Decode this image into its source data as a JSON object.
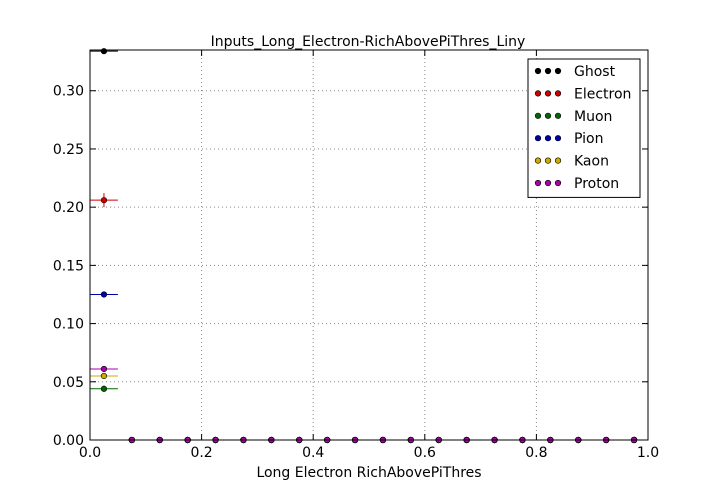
{
  "chart_data": {
    "type": "scatter",
    "title": "Inputs_Long_Electron-RichAbovePiThres_Liny",
    "xlabel": "Long Electron RichAbovePiThres",
    "ylabel": "",
    "xlim": [
      0.0,
      1.0
    ],
    "ylim": [
      0.0,
      0.335
    ],
    "xticks": [
      0.0,
      0.2,
      0.4,
      0.6,
      0.8,
      1.0
    ],
    "xtick_labels": [
      "0.0",
      "0.2",
      "0.4",
      "0.6",
      "0.8",
      "1.0"
    ],
    "yticks": [
      0.0,
      0.05,
      0.1,
      0.15,
      0.2,
      0.25,
      0.3
    ],
    "ytick_labels": [
      "0.00",
      "0.05",
      "0.10",
      "0.15",
      "0.20",
      "0.25",
      "0.30"
    ],
    "grid": true,
    "legend_position": "top-right",
    "x_bin_halfwidth": 0.025,
    "x": [
      0.025,
      0.075,
      0.125,
      0.175,
      0.225,
      0.275,
      0.325,
      0.375,
      0.425,
      0.475,
      0.525,
      0.575,
      0.625,
      0.675,
      0.725,
      0.775,
      0.825,
      0.875,
      0.925,
      0.975
    ],
    "series": [
      {
        "name": "Ghost",
        "color": "#000000",
        "values": [
          0.334,
          0,
          0,
          0,
          0,
          0,
          0,
          0,
          0,
          0,
          0,
          0,
          0,
          0,
          0,
          0,
          0,
          0,
          0,
          0
        ],
        "yerr": [
          0.002,
          0,
          0,
          0,
          0,
          0,
          0,
          0,
          0,
          0,
          0,
          0,
          0,
          0,
          0,
          0,
          0,
          0,
          0,
          0
        ]
      },
      {
        "name": "Electron",
        "color": "#cc0000",
        "values": [
          0.206,
          0,
          0,
          0,
          0,
          0,
          0,
          0,
          0,
          0,
          0,
          0,
          0,
          0,
          0,
          0,
          0,
          0,
          0,
          0
        ],
        "yerr": [
          0.006,
          0,
          0,
          0,
          0,
          0,
          0,
          0,
          0,
          0,
          0,
          0,
          0,
          0,
          0,
          0,
          0,
          0,
          0,
          0
        ]
      },
      {
        "name": "Muon",
        "color": "#006600",
        "values": [
          0.044,
          0,
          0,
          0,
          0,
          0,
          0,
          0,
          0,
          0,
          0,
          0,
          0,
          0,
          0,
          0,
          0,
          0,
          0,
          0
        ],
        "yerr": [
          0.001,
          0,
          0,
          0,
          0,
          0,
          0,
          0,
          0,
          0,
          0,
          0,
          0,
          0,
          0,
          0,
          0,
          0,
          0,
          0
        ]
      },
      {
        "name": "Pion",
        "color": "#0000aa",
        "values": [
          0.125,
          0,
          0,
          0,
          0,
          0,
          0,
          0,
          0,
          0,
          0,
          0,
          0,
          0,
          0,
          0,
          0,
          0,
          0,
          0
        ],
        "yerr": [
          0.001,
          0,
          0,
          0,
          0,
          0,
          0,
          0,
          0,
          0,
          0,
          0,
          0,
          0,
          0,
          0,
          0,
          0,
          0,
          0
        ]
      },
      {
        "name": "Kaon",
        "color": "#ccaa00",
        "values": [
          0.055,
          0,
          0,
          0,
          0,
          0,
          0,
          0,
          0,
          0,
          0,
          0,
          0,
          0,
          0,
          0,
          0,
          0,
          0,
          0
        ],
        "yerr": [
          0.001,
          0,
          0,
          0,
          0,
          0,
          0,
          0,
          0,
          0,
          0,
          0,
          0,
          0,
          0,
          0,
          0,
          0,
          0,
          0
        ]
      },
      {
        "name": "Proton",
        "color": "#aa00aa",
        "values": [
          0.061,
          0,
          0,
          0,
          0,
          0,
          0,
          0,
          0,
          0,
          0,
          0,
          0,
          0,
          0,
          0,
          0,
          0,
          0,
          0
        ],
        "yerr": [
          0.001,
          0,
          0,
          0,
          0,
          0,
          0,
          0,
          0,
          0,
          0,
          0,
          0,
          0,
          0,
          0,
          0,
          0,
          0,
          0
        ]
      }
    ]
  }
}
